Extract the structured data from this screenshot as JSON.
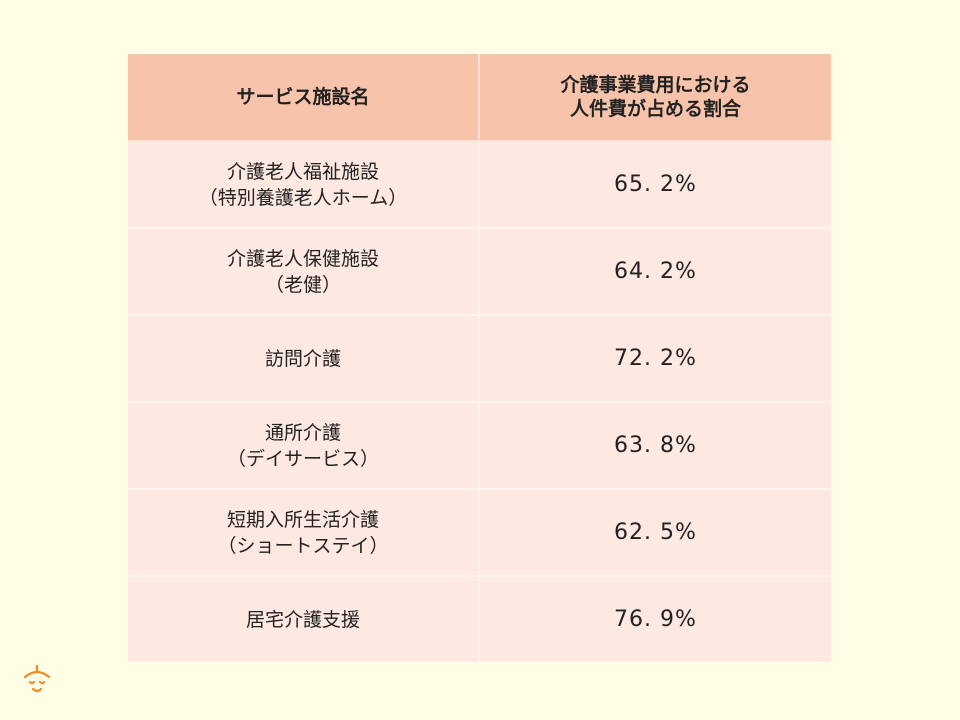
{
  "chart_data": {
    "type": "table",
    "columns": [
      "サービス施設名",
      [
        "介護事業費用における",
        "人件費が占める割合"
      ]
    ],
    "rows": [
      {
        "name": [
          "介護老人福祉施設",
          "（特別養護老人ホーム）"
        ],
        "value": "65. 2%"
      },
      {
        "name": [
          "介護老人保健施設",
          "（老健）"
        ],
        "value": "64. 2%"
      },
      {
        "name": [
          "訪問介護"
        ],
        "value": "72. 2%"
      },
      {
        "name": [
          "通所介護",
          "（デイサービス）"
        ],
        "value": "63. 8%"
      },
      {
        "name": [
          "短期入所生活介護",
          "（ショートステイ）"
        ],
        "value": "62. 5%"
      },
      {
        "name": [
          "居宅介護支援"
        ],
        "value": "76. 9%"
      }
    ],
    "colors": {
      "header_bg": "#f7c3aa",
      "cell_bg": "#fde8e2",
      "page_bg": "#fffde6",
      "logo": "#f08a24"
    }
  },
  "logo": {
    "icon": "smiling-face-logo-icon"
  }
}
